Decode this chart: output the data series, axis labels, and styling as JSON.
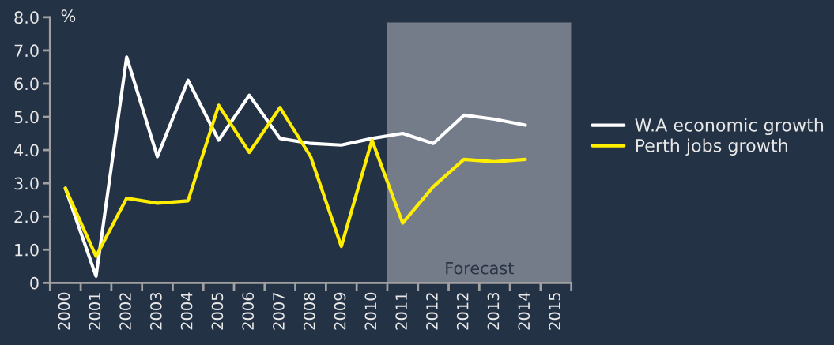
{
  "chart_data": {
    "type": "line",
    "ylabel": "%",
    "categories": [
      "2000",
      "2001",
      "2002",
      "2003",
      "2004",
      "2005",
      "2006",
      "2007",
      "2008",
      "2009",
      "2010",
      "2011",
      "2012",
      "2012",
      "2013",
      "2014",
      "2015"
    ],
    "series": [
      {
        "name": "W.A economic growth",
        "color": "#ffffff",
        "values": [
          2.85,
          0.2,
          6.8,
          3.8,
          6.1,
          4.3,
          5.65,
          4.35,
          4.2,
          4.15,
          4.35,
          4.5,
          4.2,
          5.05,
          4.93,
          4.75,
          null
        ]
      },
      {
        "name": "Perth jobs growth",
        "color": "#ffee00",
        "values": [
          2.85,
          0.8,
          2.55,
          2.4,
          2.47,
          5.35,
          3.93,
          5.28,
          3.8,
          1.1,
          4.3,
          1.8,
          2.9,
          3.72,
          3.65,
          3.72,
          null
        ]
      }
    ],
    "ylim": [
      0,
      8
    ],
    "yticks": [
      0,
      {
        "value": 1,
        "label": "1.0"
      },
      {
        "value": 2,
        "label": "2.0"
      },
      {
        "value": 3,
        "label": "3.0"
      },
      {
        "value": 4,
        "label": "4.0"
      },
      {
        "value": 5,
        "label": "5.0"
      },
      {
        "value": 6,
        "label": "6.0"
      },
      {
        "value": 7,
        "label": "7.0"
      },
      {
        "value": 8,
        "label": "8.0"
      }
    ],
    "bands": [
      {
        "axis": "x",
        "from": "2011",
        "to": "2015",
        "label": "Forecast",
        "color": "#747c8a"
      }
    ],
    "grid": false,
    "legend": "right",
    "marker": "none",
    "line_style": "solid"
  }
}
